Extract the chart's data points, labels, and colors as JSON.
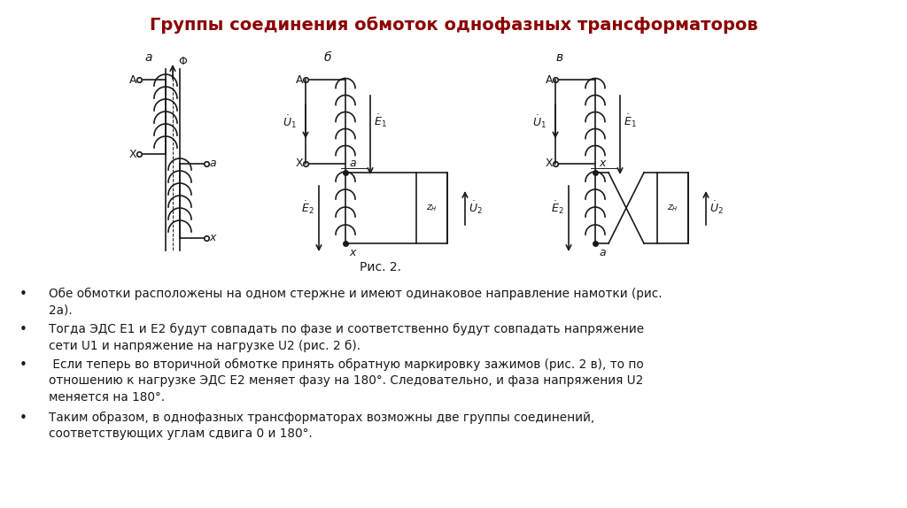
{
  "title": "Группы соединения обмоток однофазных трансформаторов",
  "title_color": "#8B0000",
  "title_fontsize": 14,
  "fig_caption": "Рис. 2.",
  "diagram_labels": [
    "а",
    "б",
    "в"
  ],
  "bullet_texts": [
    "Обе обмотки расположены на одном стержне и имеют одинаковое направление намотки (рис.\n2а).",
    "Тогда ЭДС Е1 и Е2 будут совпадать по фазе и соответственно будут совпадать напряжение\nсети U1 и напряжение на нагрузке U2 (рис. 2 б).",
    " Если теперь во вторичной обмотке принять обратную маркировку зажимов (рис. 2 в), то по\nотношению к нагрузке ЭДС E2 меняет фазу на 180°. Следовательно, и фаза напряжения U2\nменяется на 180°.",
    "Таким образом, в однофазных трансформаторах возможны две группы соединений,\nсоответствующих углам сдвига 0 и 180°."
  ],
  "background_color": "#ffffff",
  "text_color": "#1a1a1a",
  "diagram_color": "#1a1a1a"
}
